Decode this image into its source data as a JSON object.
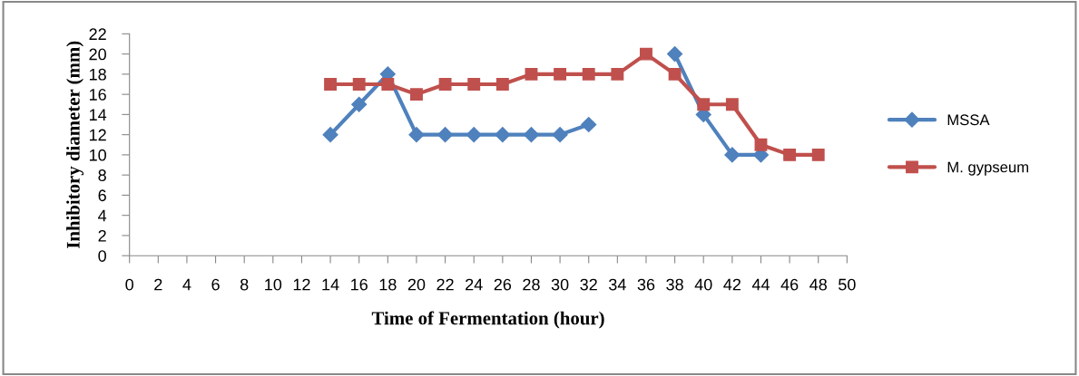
{
  "chart_data": {
    "type": "line",
    "xlabel": "Time of Fermentation (hour)",
    "ylabel": "Inhibitory diameter (mm)",
    "x": [
      14,
      16,
      18,
      20,
      22,
      24,
      26,
      28,
      30,
      32,
      34,
      36,
      38,
      40,
      42,
      44,
      46,
      48
    ],
    "series": [
      {
        "name": "MSSA",
        "color": "#4f81bd",
        "marker": "diamond",
        "values": [
          12,
          15,
          18,
          12,
          12,
          12,
          12,
          12,
          12,
          13,
          null,
          null,
          20,
          14,
          10,
          10,
          null,
          null
        ]
      },
      {
        "name": "M. gypseum",
        "color": "#c0504d",
        "marker": "square",
        "values": [
          17,
          17,
          17,
          16,
          17,
          17,
          17,
          18,
          18,
          18,
          18,
          20,
          18,
          15,
          15,
          11,
          10,
          10
        ]
      }
    ],
    "xlim": [
      0,
      50
    ],
    "xticks": [
      0,
      2,
      4,
      6,
      8,
      10,
      12,
      14,
      16,
      18,
      20,
      22,
      24,
      26,
      28,
      30,
      32,
      34,
      36,
      38,
      40,
      42,
      44,
      46,
      48,
      50
    ],
    "ylim": [
      0,
      22
    ],
    "yticks": [
      0,
      2,
      4,
      6,
      8,
      10,
      12,
      14,
      16,
      18,
      20,
      22
    ],
    "grid": false,
    "legend": "right",
    "line_style": "solid"
  }
}
